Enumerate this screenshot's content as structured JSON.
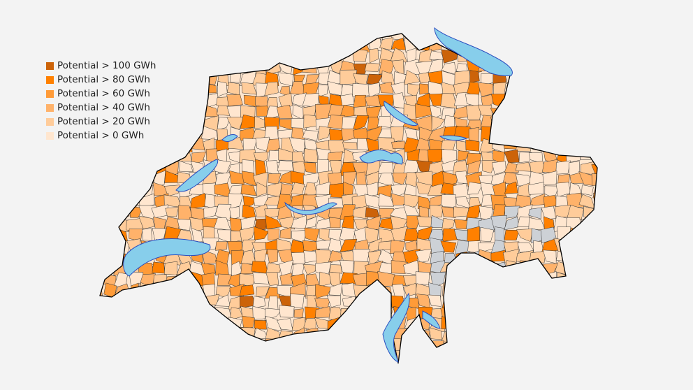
{
  "legend": {
    "items": [
      {
        "label": "Potential > 100 GWh",
        "color": "#cc6309"
      },
      {
        "label": "Potential > 80 GWh",
        "color": "#ff8000"
      },
      {
        "label": "Potential > 60 GWh",
        "color": "#ff9b38"
      },
      {
        "label": "Potential > 40 GWh",
        "color": "#ffb26a"
      },
      {
        "label": "Potential > 20 GWh",
        "color": "#ffcc9a"
      },
      {
        "label": "Potential > 0 GWh",
        "color": "#ffe6cf"
      }
    ]
  },
  "map_colors": {
    "no_data": "#cdd1d6",
    "lake": "#87ceeb",
    "lake_border": "#2b4ec0",
    "border": "#000000"
  }
}
